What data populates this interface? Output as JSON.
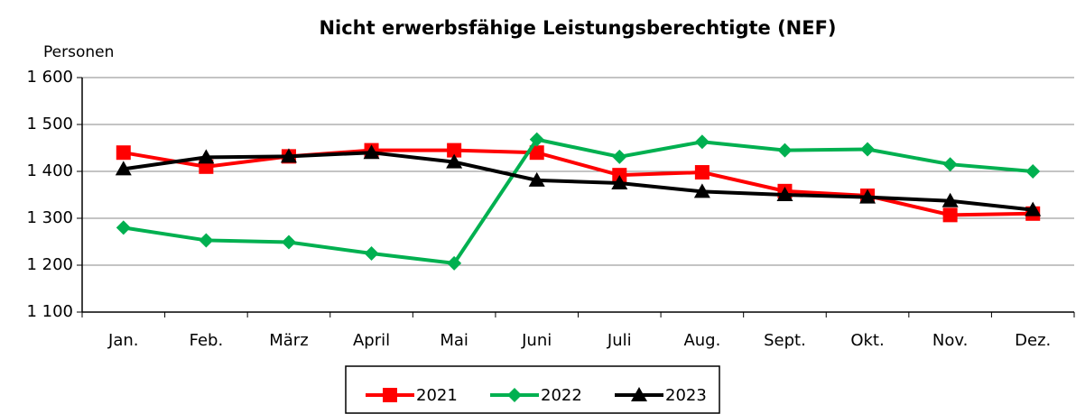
{
  "chart_data": {
    "type": "line",
    "title": "Nicht erwerbsfähige Leistungsberechtigte (NEF)",
    "y_label": "Personen",
    "categories": [
      "Jan.",
      "Feb.",
      "März",
      "April",
      "Mai",
      "Juni",
      "Juli",
      "Aug.",
      "Sept.",
      "Okt.",
      "Nov.",
      "Dez."
    ],
    "series": [
      {
        "name": "2021",
        "color": "#ff0000",
        "marker": "square",
        "values": [
          1440,
          1410,
          1432,
          1445,
          1445,
          1440,
          1392,
          1398,
          1358,
          1348,
          1307,
          1310
        ]
      },
      {
        "name": "2022",
        "color": "#00b050",
        "marker": "diamond",
        "values": [
          1280,
          1253,
          1249,
          1225,
          1204,
          1468,
          1431,
          1463,
          1445,
          1447,
          1415,
          1400
        ]
      },
      {
        "name": "2023",
        "color": "#000000",
        "marker": "triangle",
        "values": [
          1405,
          1430,
          1432,
          1440,
          1420,
          1381,
          1375,
          1357,
          1350,
          1345,
          1337,
          1318
        ]
      }
    ],
    "ylim": [
      1100,
      1600
    ],
    "yticks": [
      {
        "value": 1100,
        "label": "1 100"
      },
      {
        "value": 1200,
        "label": "1 200"
      },
      {
        "value": 1300,
        "label": "1 300"
      },
      {
        "value": 1400,
        "label": "1 400"
      },
      {
        "value": 1500,
        "label": "1 500"
      },
      {
        "value": 1600,
        "label": "1 600"
      }
    ],
    "grid": true,
    "legend": "bottom"
  }
}
